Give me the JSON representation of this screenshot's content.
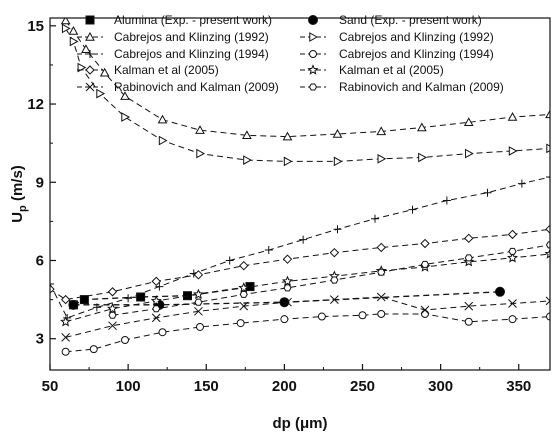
{
  "chart_data": {
    "type": "line",
    "xlabel": "dp (μm)",
    "ylabel": "U",
    "ylabel_sub": "p",
    "ylabel_unit": " (m/s)",
    "xlim": [
      50,
      370
    ],
    "ylim": [
      1.8,
      15.3
    ],
    "xticks": [
      50,
      100,
      150,
      200,
      250,
      300,
      350
    ],
    "yticks": [
      3,
      6,
      9,
      12,
      15
    ],
    "grid": false,
    "legend_position": "top",
    "series": [
      {
        "name": "Alumina (Exp. - present work)",
        "marker": "square-filled",
        "line": "dashed",
        "x": [
          65,
          72,
          108,
          138,
          178
        ],
        "y": [
          4.3,
          4.5,
          4.6,
          4.65,
          5.0
        ]
      },
      {
        "name": "Sand (Exp. - present work)",
        "marker": "circle-filled",
        "line": "dashed",
        "x": [
          65,
          120,
          200,
          338
        ],
        "y": [
          4.3,
          4.3,
          4.4,
          4.8
        ]
      },
      {
        "name": "Cabrejos and Klinzing (1992)",
        "marker": "triangle-up",
        "line": "dashed",
        "x": [
          60,
          65,
          73,
          85,
          98,
          122,
          146,
          176,
          202,
          234,
          262,
          288,
          318,
          346,
          370
        ],
        "y": [
          15.2,
          14.8,
          14.1,
          13.2,
          12.3,
          11.4,
          11.0,
          10.8,
          10.75,
          10.85,
          10.95,
          11.1,
          11.3,
          11.5,
          11.6
        ]
      },
      {
        "name": "Cabrejos and Klinzing (1992)",
        "marker": "triangle-right",
        "line": "dashed",
        "x": [
          60,
          65,
          70,
          82,
          98,
          122,
          146,
          176,
          202,
          234,
          262,
          288,
          318,
          346,
          370
        ],
        "y": [
          14.9,
          14.4,
          13.4,
          12.4,
          11.5,
          10.6,
          10.1,
          9.85,
          9.8,
          9.8,
          9.9,
          9.95,
          10.1,
          10.2,
          10.3
        ]
      },
      {
        "name": "Cabrejos and Klinzing (1994)",
        "marker": "plus",
        "line": "dashed",
        "x": [
          50,
          61,
          80,
          100,
          120,
          142,
          165,
          190,
          212,
          234,
          258,
          282,
          304,
          330,
          352,
          370
        ],
        "y": [
          5.1,
          3.8,
          4.2,
          4.55,
          5.0,
          5.5,
          6.0,
          6.4,
          6.8,
          7.2,
          7.6,
          7.95,
          8.3,
          8.6,
          8.95,
          9.2
        ]
      },
      {
        "name": "Cabrejos and Klinzing (1994)",
        "marker": "circle-open",
        "line": "dashed",
        "x": [
          60,
          78,
          98,
          122,
          146,
          172,
          200,
          224,
          250,
          262,
          290,
          318,
          346,
          370
        ],
        "y": [
          2.5,
          2.6,
          2.95,
          3.25,
          3.45,
          3.6,
          3.75,
          3.85,
          3.9,
          3.95,
          3.95,
          3.65,
          3.75,
          3.85
        ]
      },
      {
        "name": "Kalman et al (2005)",
        "marker": "diamond-open",
        "line": "dashed",
        "x": [
          50,
          60,
          90,
          118,
          145,
          174,
          202,
          232,
          262,
          290,
          318,
          346,
          370
        ],
        "y": [
          4.9,
          4.5,
          4.8,
          5.2,
          5.45,
          5.8,
          6.05,
          6.3,
          6.5,
          6.65,
          6.85,
          7.0,
          7.2
        ]
      },
      {
        "name": "Kalman et al (2005)",
        "marker": "star-open",
        "line": "dashed",
        "x": [
          60,
          90,
          118,
          145,
          174,
          202,
          232,
          262,
          290,
          318,
          346,
          370
        ],
        "y": [
          3.65,
          4.15,
          4.45,
          4.7,
          4.95,
          5.2,
          5.4,
          5.6,
          5.75,
          5.95,
          6.1,
          6.25
        ]
      },
      {
        "name": "Rabinovich and Kalman (2009)",
        "marker": "x",
        "line": "dashed",
        "x": [
          60,
          90,
          118,
          145,
          174,
          202,
          232,
          262,
          290,
          318,
          346,
          370
        ],
        "y": [
          3.05,
          3.5,
          3.8,
          4.05,
          4.25,
          4.4,
          4.5,
          4.6,
          4.1,
          4.25,
          4.35,
          4.45
        ]
      },
      {
        "name": "Rabinovich and Kalman (2009)",
        "marker": "hexagon-open",
        "line": "dashed",
        "x": [
          90,
          118,
          145,
          174,
          202,
          232,
          262,
          290,
          318,
          346,
          370
        ],
        "y": [
          3.9,
          4.15,
          4.4,
          4.7,
          4.95,
          5.25,
          5.55,
          5.85,
          6.1,
          6.35,
          6.6
        ]
      }
    ]
  }
}
